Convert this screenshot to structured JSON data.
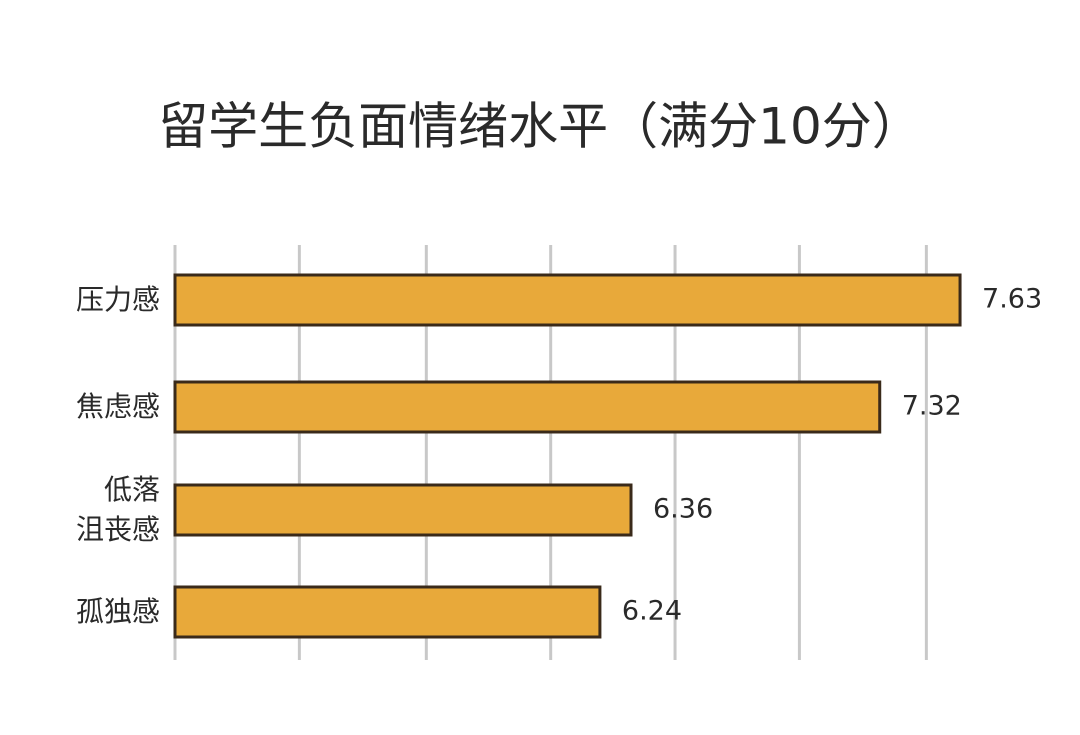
{
  "chart_data": {
    "type": "hbar",
    "title": "留学生负面情绪水平（满分10分）",
    "categories": [
      "压力感",
      "焦虑感",
      "低落\n沮丧感",
      "孤独感"
    ],
    "values": [
      7.63,
      7.32,
      6.36,
      6.24
    ],
    "color": "#e8a93a",
    "xlim": [
      4.6,
      7.9
    ],
    "xticks": [
      4.6,
      5.08,
      5.57,
      6.05,
      6.53,
      7.01,
      7.5
    ],
    "grid": true
  }
}
